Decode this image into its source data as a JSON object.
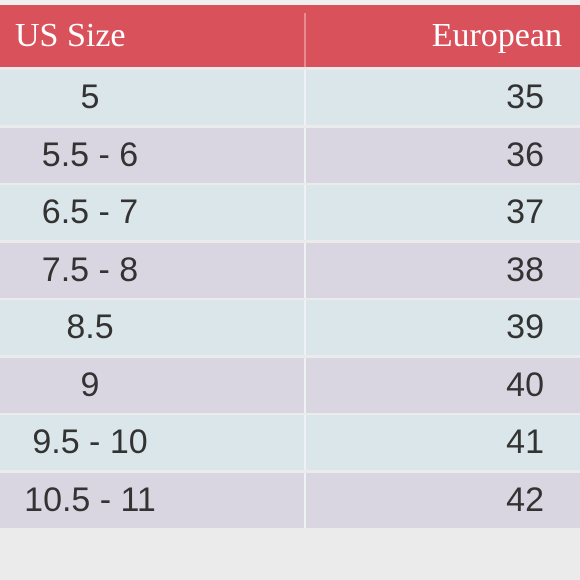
{
  "table": {
    "header": [
      "US Size",
      "European"
    ],
    "rows": [
      [
        "5",
        "35"
      ],
      [
        "5.5 - 6",
        "36"
      ],
      [
        "6.5 - 7",
        "37"
      ],
      [
        "7.5 - 8",
        "38"
      ],
      [
        "8.5",
        "39"
      ],
      [
        "9",
        "40"
      ],
      [
        "9.5 - 10",
        "41"
      ],
      [
        "10.5 - 11",
        "42"
      ]
    ]
  }
}
